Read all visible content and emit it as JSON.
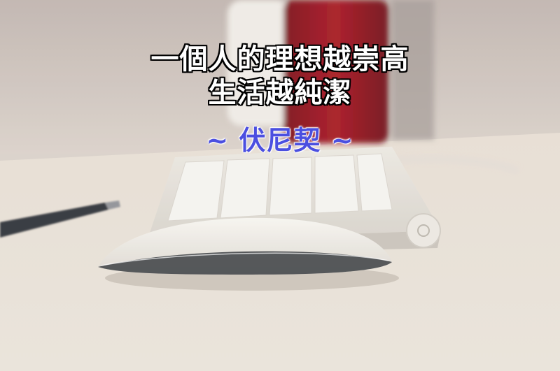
{
  "quote": {
    "line1": "一個人的理想越崇高",
    "line2": "生活越純潔",
    "author": "~ 伏尼契 ~"
  },
  "colors": {
    "quote_text": "#ffffff",
    "quote_outline": "#000000",
    "author_text": "#4b4fe0"
  }
}
